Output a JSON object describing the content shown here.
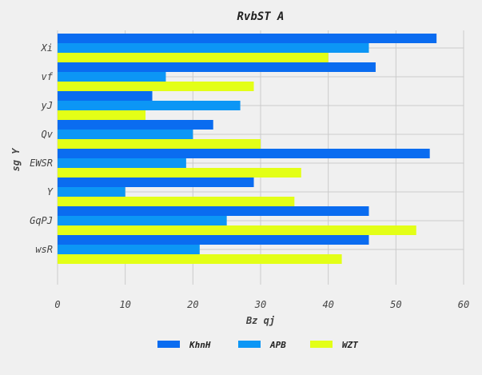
{
  "chart_data": {
    "type": "bar",
    "orientation": "horizontal",
    "title": "RvbST  A",
    "xlabel": "Bz qj",
    "ylabel": "sg Y",
    "categories": [
      "Xi",
      "vf",
      "yJ",
      "Qv",
      "EWSR",
      "Y",
      "GqPJ",
      "wsR"
    ],
    "xlim": [
      0,
      60
    ],
    "xticks": [
      0,
      10,
      20,
      30,
      40,
      50,
      60
    ],
    "grid": true,
    "legend_position": "bottom",
    "series": [
      {
        "name": "KhnH",
        "color": "#0a6cf0",
        "values": [
          56,
          47,
          14,
          23,
          55,
          29,
          46,
          46
        ]
      },
      {
        "name": "APB",
        "color": "#0c96f5",
        "values": [
          46,
          16,
          27,
          20,
          19,
          10,
          25,
          21
        ]
      },
      {
        "name": "WZT",
        "color": "#e3ff17",
        "values": [
          40,
          29,
          13,
          30,
          36,
          35,
          53,
          42
        ]
      }
    ]
  }
}
